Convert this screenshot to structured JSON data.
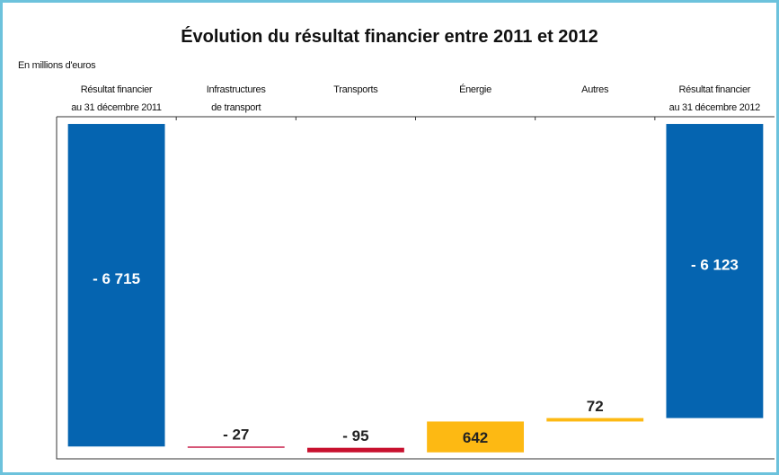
{
  "chart_data": {
    "type": "waterfall",
    "title": "Évolution du résultat financier entre 2011 et 2012",
    "y_label": "En millions d'euros",
    "categories": [
      "Résultat financier\nau 31 décembre 2011",
      "Infrastructures\nde transport",
      "Transports",
      "Énergie",
      "Autres",
      "Résultat  financier\nau 31 décembre 2012"
    ],
    "values": [
      -6715,
      -27,
      -95,
      642,
      72,
      -6123
    ],
    "value_labels": [
      "- 6 715",
      "- 27",
      "- 95",
      "642",
      "72",
      "- 6 123"
    ],
    "totals": [
      true,
      false,
      false,
      false,
      false,
      true
    ],
    "colors": [
      "#0564b0",
      "#c81e4a",
      "#c8102e",
      "#fdb913",
      "#fdb913",
      "#0564b0"
    ],
    "ylim": [
      -6972,
      150
    ]
  }
}
